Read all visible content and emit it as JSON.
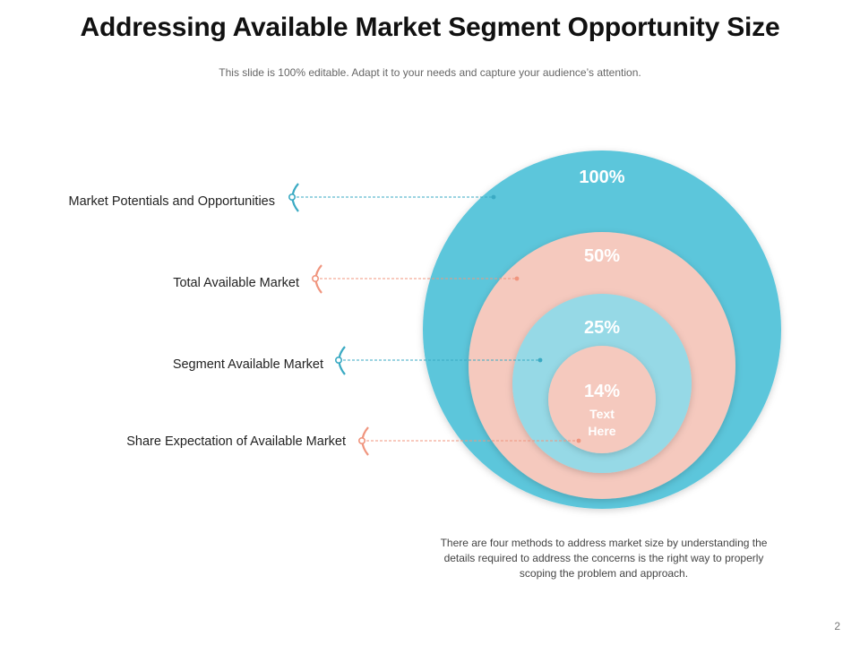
{
  "header": {
    "title": "Addressing Available Market Segment Opportunity Size",
    "subtitle": "This slide is 100% editable. Adapt it to your needs and capture your audience’s attention."
  },
  "rings": [
    {
      "percent": "100%",
      "label": "Market Potentials and Opportunities",
      "color": "#5bc6db",
      "connector_color": "#3aaac3"
    },
    {
      "percent": "50%",
      "label": "Total Available Market",
      "color": "#f5c9be",
      "connector_color": "#f0957e"
    },
    {
      "percent": "25%",
      "label": "Segment Available Market",
      "color": "#96d9e6",
      "connector_color": "#3aaac3"
    },
    {
      "percent": "14%",
      "label": "Share Expectation of Available Market",
      "color": "#f5c9be",
      "connector_color": "#f0957e"
    }
  ],
  "center_text": "Text Here",
  "description": "There are four methods to address market size by understanding the details required to address the concerns is the right way to properly scoping the problem and approach.",
  "page_number": "2"
}
